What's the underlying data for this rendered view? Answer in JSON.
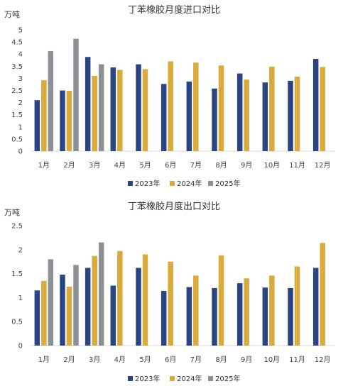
{
  "colors": {
    "2023": "#2b4583",
    "2024": "#d9aa3c",
    "2025": "#8d9095"
  },
  "legend": [
    {
      "key": "2023",
      "label": "2023年"
    },
    {
      "key": "2024",
      "label": "2024年"
    },
    {
      "key": "2025",
      "label": "2025年"
    }
  ],
  "chart_data": [
    {
      "type": "bar",
      "title": "丁苯橡胶月度进口对比",
      "ylabel": "万吨",
      "xlabel": "",
      "ylim": [
        0,
        5
      ],
      "yticks": [
        "0",
        "0.5",
        "1",
        "1.5",
        "2",
        "2.5",
        "3",
        "3.5",
        "4",
        "4.5",
        "5"
      ],
      "ytick_values": [
        0,
        0.5,
        1,
        1.5,
        2,
        2.5,
        3,
        3.5,
        4,
        4.5,
        5
      ],
      "categories": [
        "1月",
        "2月",
        "3月",
        "4月",
        "5月",
        "6月",
        "7月",
        "8月",
        "9月",
        "10月",
        "11月",
        "12月"
      ],
      "series": [
        {
          "name": "2023年",
          "key": "2023",
          "values": [
            2.1,
            2.5,
            3.88,
            3.45,
            3.58,
            2.77,
            2.87,
            2.58,
            3.2,
            2.83,
            2.9,
            3.8
          ]
        },
        {
          "name": "2024年",
          "key": "2024",
          "values": [
            2.92,
            2.49,
            3.1,
            3.35,
            3.38,
            3.7,
            3.65,
            3.53,
            2.95,
            3.48,
            3.07,
            3.47
          ]
        },
        {
          "name": "2025年",
          "key": "2025",
          "values": [
            4.12,
            4.63,
            3.58,
            null,
            null,
            null,
            null,
            null,
            null,
            null,
            null,
            null
          ]
        }
      ],
      "grid": false,
      "legend_position": "bottom"
    },
    {
      "type": "bar",
      "title": "丁苯橡胶月度出口对比",
      "ylabel": "万吨",
      "xlabel": "",
      "ylim": [
        0,
        2.5
      ],
      "yticks": [
        "0",
        "0.5",
        "1",
        "1.5",
        "2",
        "2.5"
      ],
      "ytick_values": [
        0,
        0.5,
        1,
        1.5,
        2,
        2.5
      ],
      "categories": [
        "1月",
        "2月",
        "3月",
        "4月",
        "5月",
        "6月",
        "7月",
        "8月",
        "9月",
        "10月",
        "11月",
        "12月"
      ],
      "series": [
        {
          "name": "2023年",
          "key": "2023",
          "values": [
            1.15,
            1.48,
            1.62,
            1.25,
            1.62,
            1.14,
            1.22,
            1.2,
            1.3,
            1.21,
            1.2,
            1.62
          ]
        },
        {
          "name": "2024年",
          "key": "2024",
          "values": [
            1.35,
            1.23,
            1.87,
            1.97,
            1.9,
            1.75,
            1.46,
            1.88,
            1.4,
            1.46,
            1.65,
            2.14
          ]
        },
        {
          "name": "2025年",
          "key": "2025",
          "values": [
            1.8,
            1.68,
            2.15,
            null,
            null,
            null,
            null,
            null,
            null,
            null,
            null,
            null
          ]
        }
      ],
      "grid": false,
      "legend_position": "bottom"
    }
  ]
}
